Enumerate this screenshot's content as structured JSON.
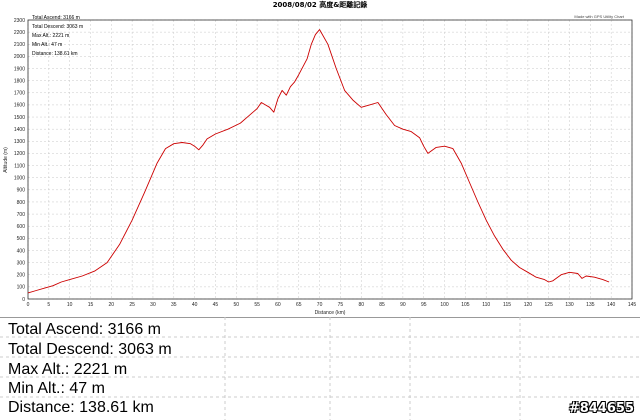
{
  "chart_data": {
    "type": "line",
    "title": "2008/08/02 高度&距離記錄",
    "xlabel": "Distance (km)",
    "ylabel": "Altitude (m)",
    "xlim": [
      0,
      145
    ],
    "ylim": [
      0,
      2300
    ],
    "xticks": [
      0,
      5,
      10,
      15,
      20,
      25,
      30,
      35,
      40,
      45,
      50,
      55,
      60,
      65,
      70,
      75,
      80,
      85,
      90,
      95,
      100,
      105,
      110,
      115,
      120,
      125,
      130,
      135,
      140,
      145
    ],
    "yticks": [
      0,
      100,
      200,
      300,
      400,
      500,
      600,
      700,
      800,
      900,
      1000,
      1100,
      1200,
      1300,
      1400,
      1500,
      1600,
      1700,
      1800,
      1900,
      2000,
      2100,
      2200,
      2300
    ],
    "grid": true,
    "line_color": "#cc0000",
    "series": [
      {
        "x": [
          0,
          2,
          4,
          6,
          8,
          10,
          13,
          16,
          19,
          22,
          25,
          28,
          31,
          33,
          35,
          37,
          39,
          40,
          41,
          42,
          43,
          45,
          48,
          51,
          53,
          55,
          56,
          57,
          58,
          59,
          60,
          61,
          62,
          63,
          64,
          65,
          67,
          68,
          69,
          70,
          72,
          74,
          76,
          78,
          80,
          82,
          84,
          86,
          88,
          90,
          92,
          94,
          95,
          96,
          98,
          100,
          102,
          104,
          106,
          108,
          110,
          112,
          114,
          116,
          118,
          120,
          122,
          124,
          125,
          126,
          128,
          130,
          132,
          133,
          134,
          136,
          138,
          139.5
        ],
        "y": [
          50,
          70,
          90,
          110,
          140,
          160,
          190,
          230,
          300,
          450,
          650,
          880,
          1120,
          1240,
          1280,
          1290,
          1280,
          1260,
          1230,
          1270,
          1320,
          1360,
          1400,
          1450,
          1510,
          1570,
          1620,
          1600,
          1580,
          1540,
          1650,
          1720,
          1680,
          1750,
          1790,
          1850,
          1980,
          2100,
          2180,
          2221,
          2100,
          1900,
          1720,
          1640,
          1580,
          1600,
          1620,
          1520,
          1430,
          1400,
          1380,
          1330,
          1260,
          1200,
          1250,
          1260,
          1240,
          1120,
          960,
          800,
          650,
          520,
          410,
          320,
          260,
          220,
          180,
          160,
          140,
          150,
          200,
          220,
          210,
          170,
          190,
          180,
          160,
          140
        ]
      }
    ]
  },
  "overlay_stats": {
    "ascend": "Total Ascend: 3166 m",
    "descend": "Total Descend: 3063 m",
    "max": "Max Alt.: 2221 m",
    "min": "Min Alt.: 47 m",
    "distance": "Distance: 138.61 km"
  },
  "credit": "Made with GPS Utility Chart",
  "summary": {
    "ascend": "Total Ascend: 3166 m",
    "descend": "Total Descend: 3063 m",
    "max": "Max Alt.: 2221 m",
    "min": "Min Alt.: 47 m",
    "distance": "Distance: 138.61 km"
  },
  "watermark": "#844655"
}
